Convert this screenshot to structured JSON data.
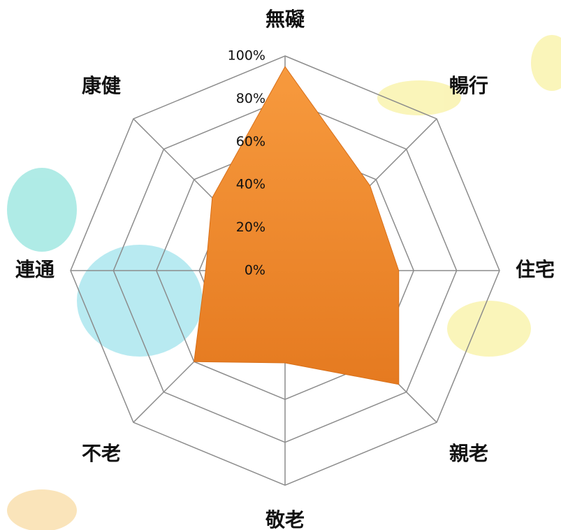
{
  "chart_data": {
    "type": "radar",
    "categories": [
      "無礙",
      "暢行",
      "住宅",
      "親老",
      "敬老",
      "不老",
      "連通",
      "康健"
    ],
    "series": [
      {
        "color": "#f0882a",
        "values": [
          95,
          56,
          53,
          75,
          43,
          60,
          37,
          48
        ]
      }
    ],
    "rlim": [
      0,
      100
    ],
    "rticks": [
      {
        "value": 0,
        "label": "0%"
      },
      {
        "value": 20,
        "label": "20%"
      },
      {
        "value": 40,
        "label": "40%"
      },
      {
        "value": 60,
        "label": "60%"
      },
      {
        "value": 80,
        "label": "80%"
      },
      {
        "value": 100,
        "label": "100%"
      }
    ],
    "grid": true
  }
}
